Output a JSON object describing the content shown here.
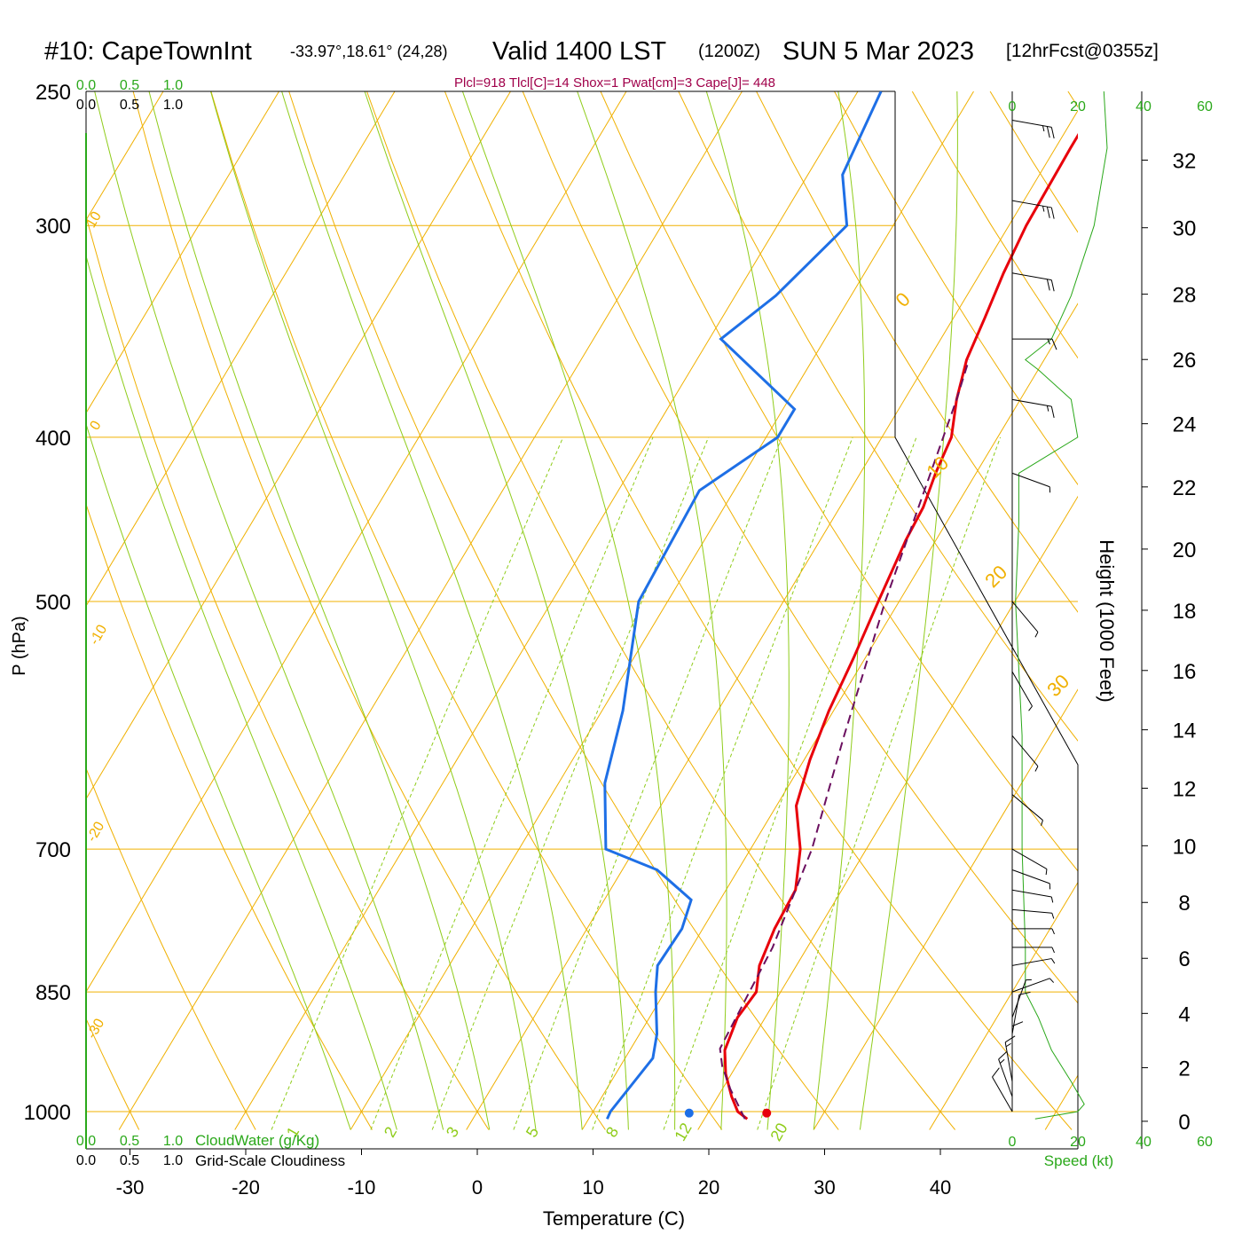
{
  "header": {
    "station": "#10: CapeTownInt",
    "coords": "-33.97°,18.61° (24,28)",
    "valid": "Valid 1400 LST",
    "utc": "(1200Z)",
    "date": "SUN 5 Mar 2023",
    "forecast": "[12hrFcst@0355z]",
    "indices": "Plcl=918 Tlcl[C]=14 Shox=1 Pwat[cm]=3 Cape[J]= 448"
  },
  "colors": {
    "temperature": "#e8000b",
    "dewpoint": "#1e6fe6",
    "parcel": "#6b0f5f",
    "isotherm": "#f0b000",
    "adiabat": "#8fcc1a",
    "mixing_ratio": "#8fcc1a",
    "cloud_axis": "#2aa81a",
    "indices_text": "#a0004a"
  },
  "axes": {
    "xlabel": "Temperature (C)",
    "ylabel": "P (hPa)",
    "right_label": "Height (1000 Feet)",
    "cloudwater_label": "CloudWater (g/Kg)",
    "cloudiness_label": "Grid-Scale Cloudiness",
    "speed_label": "Speed (kt)",
    "top_green_ticks": [
      "0.0",
      "0.5",
      "1.0"
    ],
    "top_black_ticks": [
      "0.0",
      "0.5",
      "1.0"
    ],
    "bottom_green_ticks": [
      "0.0",
      "0.5",
      "1.0"
    ],
    "bottom_black_ticks": [
      "0.0",
      "0.5",
      "1.0"
    ]
  },
  "chart_data": {
    "type": "line",
    "diagram": "skew-T log-P",
    "y_scale": "log",
    "pressure_levels": [
      250,
      300,
      400,
      500,
      700,
      850,
      1000
    ],
    "temperature_ticks": [
      -30,
      -20,
      -10,
      0,
      10,
      20,
      30,
      40
    ],
    "xlim": [
      -34,
      46
    ],
    "ylim": [
      1025,
      250
    ],
    "isotherm_labels": [
      {
        "label": "10",
        "row": 0
      },
      {
        "label": "0",
        "row": 1
      },
      {
        "label": "-10",
        "row": 2
      },
      {
        "label": "-20",
        "row": 3
      },
      {
        "label": "-30",
        "row": 4
      },
      {
        "label": "0",
        "row": 5
      },
      {
        "label": "10",
        "row": 6
      },
      {
        "label": "20",
        "row": 7
      },
      {
        "label": "30",
        "row": 8
      }
    ],
    "mixing_ratio_labels": [
      "1",
      "2",
      "3",
      "5",
      "8",
      "12",
      "20"
    ],
    "mixing_ratio_values": [
      1,
      2,
      3,
      5,
      8,
      12,
      20
    ],
    "series": [
      {
        "name": "temperature",
        "points": [
          [
            250,
            1.3
          ],
          [
            270,
            1.3
          ],
          [
            300,
            1.5
          ],
          [
            320,
            2
          ],
          [
            340,
            2.7
          ],
          [
            360,
            3.3
          ],
          [
            380,
            4.5
          ],
          [
            400,
            6
          ],
          [
            420,
            6.5
          ],
          [
            440,
            7.2
          ],
          [
            460,
            7.4
          ],
          [
            500,
            8.2
          ],
          [
            540,
            9
          ],
          [
            580,
            9.6
          ],
          [
            620,
            10.5
          ],
          [
            660,
            11.7
          ],
          [
            700,
            14.3
          ],
          [
            740,
            16
          ],
          [
            780,
            16.2
          ],
          [
            820,
            16.8
          ],
          [
            850,
            17.9
          ],
          [
            880,
            17.6
          ],
          [
            920,
            18.2
          ],
          [
            950,
            19.5
          ],
          [
            980,
            21.2
          ],
          [
            1000,
            22.5
          ],
          [
            1010,
            23.7
          ]
        ]
      },
      {
        "name": "dewpoint",
        "points": [
          [
            250,
            -18
          ],
          [
            280,
            -17
          ],
          [
            300,
            -14
          ],
          [
            330,
            -16.5
          ],
          [
            350,
            -19
          ],
          [
            385,
            -9
          ],
          [
            400,
            -9
          ],
          [
            430,
            -13
          ],
          [
            500,
            -12.5
          ],
          [
            580,
            -8.2
          ],
          [
            640,
            -6
          ],
          [
            700,
            -2.5
          ],
          [
            720,
            3
          ],
          [
            750,
            7.5
          ],
          [
            780,
            8.2
          ],
          [
            820,
            8
          ],
          [
            850,
            9.2
          ],
          [
            900,
            11.5
          ],
          [
            930,
            12.4
          ],
          [
            1000,
            11.5
          ],
          [
            1010,
            11.6
          ]
        ]
      },
      {
        "name": "parcel",
        "points": [
          [
            1010,
            23.5
          ],
          [
            970,
            20.7
          ],
          [
            940,
            18.8
          ],
          [
            918,
            17.7
          ],
          [
            850,
            17.3
          ],
          [
            800,
            17
          ],
          [
            700,
            15.3
          ],
          [
            600,
            12.2
          ],
          [
            500,
            8.8
          ],
          [
            400,
            5.3
          ],
          [
            380,
            4.5
          ],
          [
            360,
            3.5
          ]
        ]
      }
    ],
    "surface_markers": {
      "temperature": 25,
      "dewpoint": 18.3
    },
    "height_ticks": [
      0,
      2,
      4,
      6,
      8,
      10,
      12,
      14,
      16,
      18,
      20,
      22,
      24,
      26,
      28,
      30,
      32
    ],
    "speed_ticks_top": [
      "0",
      "20",
      "40",
      "60"
    ],
    "speed_ticks_bottom": [
      "0",
      "20",
      "40",
      "60"
    ],
    "wind_speed_profile": [
      [
        1010,
        7
      ],
      [
        1000,
        20
      ],
      [
        990,
        22
      ],
      [
        960,
        18
      ],
      [
        920,
        12
      ],
      [
        880,
        8
      ],
      [
        850,
        4
      ],
      [
        800,
        4
      ],
      [
        700,
        3
      ],
      [
        600,
        3
      ],
      [
        500,
        1
      ],
      [
        450,
        2
      ],
      [
        420,
        2
      ],
      [
        400,
        20
      ],
      [
        380,
        18
      ],
      [
        365,
        8
      ],
      [
        360,
        4
      ],
      [
        350,
        12
      ],
      [
        330,
        18
      ],
      [
        300,
        25
      ],
      [
        270,
        29
      ],
      [
        250,
        28
      ]
    ],
    "wind_barbs": [
      {
        "p": 1000,
        "dir": 150,
        "speed": 10
      },
      {
        "p": 980,
        "dir": 160,
        "speed": 15
      },
      {
        "p": 960,
        "dir": 170,
        "speed": 15
      },
      {
        "p": 940,
        "dir": 180,
        "speed": 10
      },
      {
        "p": 900,
        "dir": 190,
        "speed": 10
      },
      {
        "p": 880,
        "dir": 200,
        "speed": 5
      },
      {
        "p": 850,
        "dir": 250,
        "speed": 5
      },
      {
        "p": 820,
        "dir": 260,
        "speed": 5
      },
      {
        "p": 800,
        "dir": 270,
        "speed": 5
      },
      {
        "p": 780,
        "dir": 270,
        "speed": 5
      },
      {
        "p": 760,
        "dir": 275,
        "speed": 5
      },
      {
        "p": 740,
        "dir": 280,
        "speed": 5
      },
      {
        "p": 720,
        "dir": 290,
        "speed": 5
      },
      {
        "p": 700,
        "dir": 300,
        "speed": 5
      },
      {
        "p": 650,
        "dir": 310,
        "speed": 5
      },
      {
        "p": 600,
        "dir": 320,
        "speed": 5
      },
      {
        "p": 550,
        "dir": 330,
        "speed": 5
      },
      {
        "p": 500,
        "dir": 320,
        "speed": 5
      },
      {
        "p": 420,
        "dir": 290,
        "speed": 5
      },
      {
        "p": 380,
        "dir": 280,
        "speed": 15
      },
      {
        "p": 350,
        "dir": 270,
        "speed": 15
      },
      {
        "p": 320,
        "dir": 280,
        "speed": 20
      },
      {
        "p": 290,
        "dir": 280,
        "speed": 25
      },
      {
        "p": 260,
        "dir": 280,
        "speed": 25
      }
    ]
  }
}
